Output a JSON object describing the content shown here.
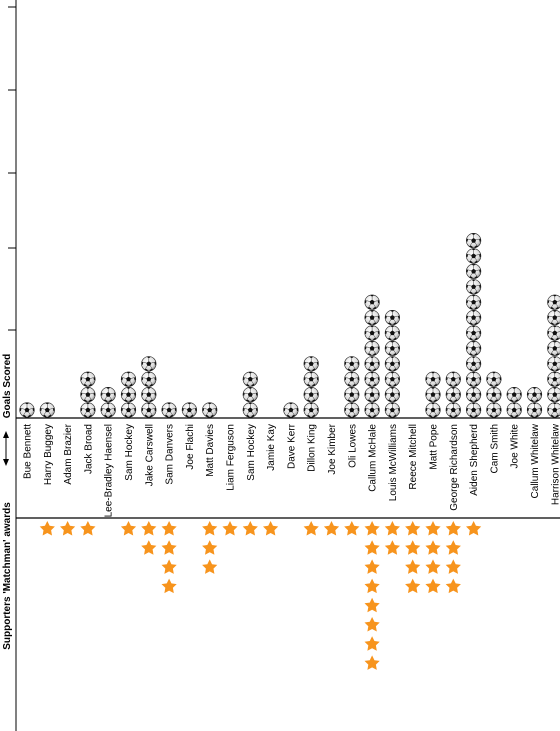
{
  "chart_data": {
    "type": "pictograph",
    "title": "",
    "axis_label_top": "Goals Scored",
    "axis_label_bottom": "Supporters 'Matchman' awards",
    "players": [
      "Bue Bennett",
      "Harry Buggey",
      "Adam Brazier",
      "Jack Broad",
      "Lee-Bradley Haensel",
      "Sam Hockey",
      "Jake Carswell",
      "Sam Danvers",
      "Joe Flachi",
      "Matt Davies",
      "Liam Ferguson",
      "Sam Hockey",
      "Jamie Kay",
      "Dave Kerr",
      "Dillon King",
      "Joe Kimber",
      "Oli Lowes",
      "Callum McHale",
      "Louis McWilliams",
      "Reece Mitchell",
      "Matt Pope",
      "George Richardson",
      "Aiden Shepherd",
      "Cam Smith",
      "Joe White",
      "Callum Whitelaw",
      "Harrison Whitelaw"
    ],
    "series": [
      {
        "name": "Goals Scored",
        "icon": "football-icon",
        "values": [
          1,
          1,
          0,
          3,
          2,
          3,
          4,
          1,
          1,
          1,
          0,
          3,
          0,
          1,
          4,
          0,
          4,
          8,
          7,
          0,
          3,
          3,
          12,
          3,
          2,
          2,
          8
        ]
      },
      {
        "name": "Supporters 'Matchman' awards",
        "icon": "star-icon",
        "values": [
          0,
          1,
          1,
          1,
          0,
          1,
          2,
          4,
          0,
          3,
          1,
          1,
          1,
          0,
          1,
          1,
          1,
          8,
          2,
          4,
          4,
          4,
          1,
          0,
          0,
          0,
          0
        ]
      }
    ],
    "colors": {
      "star": "#F7941D",
      "ball_dark": "#111111",
      "axis": "#000000"
    }
  }
}
